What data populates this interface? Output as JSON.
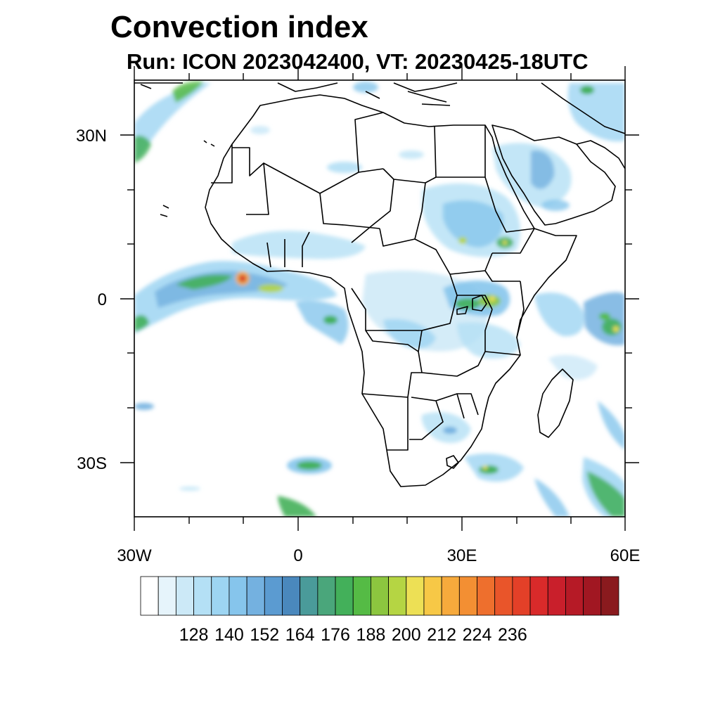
{
  "title": "Convection index",
  "subtitle": "Run: ICON 2023042400,  VT: 20230425-18UTC",
  "map": {
    "lon_range": [
      -30,
      60
    ],
    "lat_range": [
      -40,
      40
    ],
    "x_ticks": [
      "30W",
      "0",
      "30E",
      "60E"
    ],
    "y_ticks": [
      "30N",
      "0",
      "30S"
    ]
  },
  "colorbar": {
    "labels": [
      "128",
      "140",
      "152",
      "164",
      "176",
      "188",
      "200",
      "212",
      "224",
      "236"
    ],
    "colors": [
      "#ffffff",
      "#e6f4fb",
      "#cce9f7",
      "#b4e0f5",
      "#9dd5f2",
      "#86c5ec",
      "#74b1e0",
      "#5b9bd1",
      "#4a88bd",
      "#4a9b9a",
      "#4aa67b",
      "#43b05a",
      "#55bb45",
      "#8cc63f",
      "#b5d543",
      "#ede055",
      "#f7c846",
      "#f7aa3c",
      "#f38f33",
      "#ee6f2d",
      "#e9552a",
      "#e34028",
      "#d92a2a",
      "#c91f2b",
      "#b61a26",
      "#a11722",
      "#8a1a1e"
    ]
  }
}
